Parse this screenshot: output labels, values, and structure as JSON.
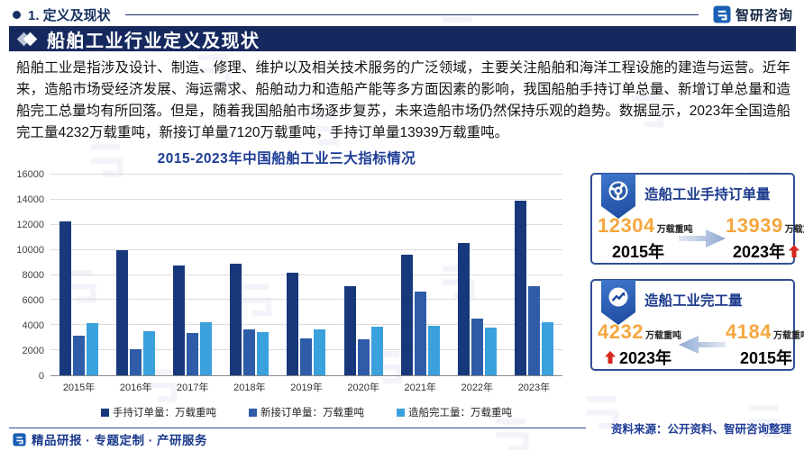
{
  "header": {
    "section_title": "1. 定义及现状",
    "brand": "智研咨询"
  },
  "banner": {
    "title": "船舶工业行业定义及现状"
  },
  "intro": {
    "text": "船舶工业是指涉及设计、制造、修理、维护以及相关技术服务的广泛领域，主要关注船舶和海洋工程设施的建造与运营。近年来，造船市场受经济发展、海运需求、船舶动力和造船产能等多方面因素的影响，我国船舶手持订单总量、新增订单总量和造船完工总量均有所回落。但是，随着我国船舶市场逐步复苏，未来造船市场仍然保持乐观的趋势。数据显示，2023年全国造船完工量4232万载重吨，新接订单量7120万载重吨，手持订单量13939万载重吨。"
  },
  "chart_data": {
    "type": "bar",
    "title": "2015-2023年中国船舶工业三大指标情况",
    "categories": [
      "2015年",
      "2016年",
      "2017年",
      "2018年",
      "2019年",
      "2020年",
      "2021年",
      "2022年",
      "2023年"
    ],
    "series": [
      {
        "name": "手持订单量：万载重吨",
        "color": "#17397c",
        "values": [
          12304,
          9961,
          8723,
          8931,
          8166,
          7111,
          9584,
          10557,
          13939
        ]
      },
      {
        "name": "新接订单量：万载重吨",
        "color": "#2e5ca8",
        "values": [
          3126,
          2107,
          3373,
          3667,
          2907,
          2893,
          6707,
          4552,
          7120
        ]
      },
      {
        "name": "造船完工量：万载重吨",
        "color": "#3ba1dc",
        "values": [
          4184,
          3532,
          4268,
          3458,
          3672,
          3853,
          3970,
          3786,
          4232
        ]
      }
    ],
    "xlabel": "",
    "ylabel": "",
    "ylim": [
      0,
      16000
    ],
    "ytick_step": 2000,
    "grid": true,
    "legend_position": "bottom"
  },
  "panels": [
    {
      "title": "造船工业手持订单量",
      "icon": "pie-badge-icon",
      "left": {
        "value": "12304",
        "unit": "万载重吨",
        "year": "2015年"
      },
      "right": {
        "value": "13939",
        "unit": "万载重吨",
        "year": "2023年"
      },
      "arrow_direction": "right",
      "highlight_side": "right"
    },
    {
      "title": "造船工业完工量",
      "icon": "trend-badge-icon",
      "left": {
        "value": "4232",
        "unit": "万载重吨",
        "year": "2023年"
      },
      "right": {
        "value": "4184",
        "unit": "万载重吨",
        "year": "2015年"
      },
      "arrow_direction": "left",
      "highlight_side": "left"
    }
  ],
  "footer": {
    "source": "资料来源：公开资料、智研咨询整理",
    "tagline": "精品研报 · 专题定制 · 产研服务"
  },
  "colors": {
    "accent_navy": "#16295f",
    "bar_dark": "#17397c",
    "bar_mid": "#2e5ca8",
    "bar_light": "#3ba1dc",
    "number_orange": "#f6a73f",
    "up_red": "#d7261d",
    "gridline": "#dcdcdc"
  }
}
